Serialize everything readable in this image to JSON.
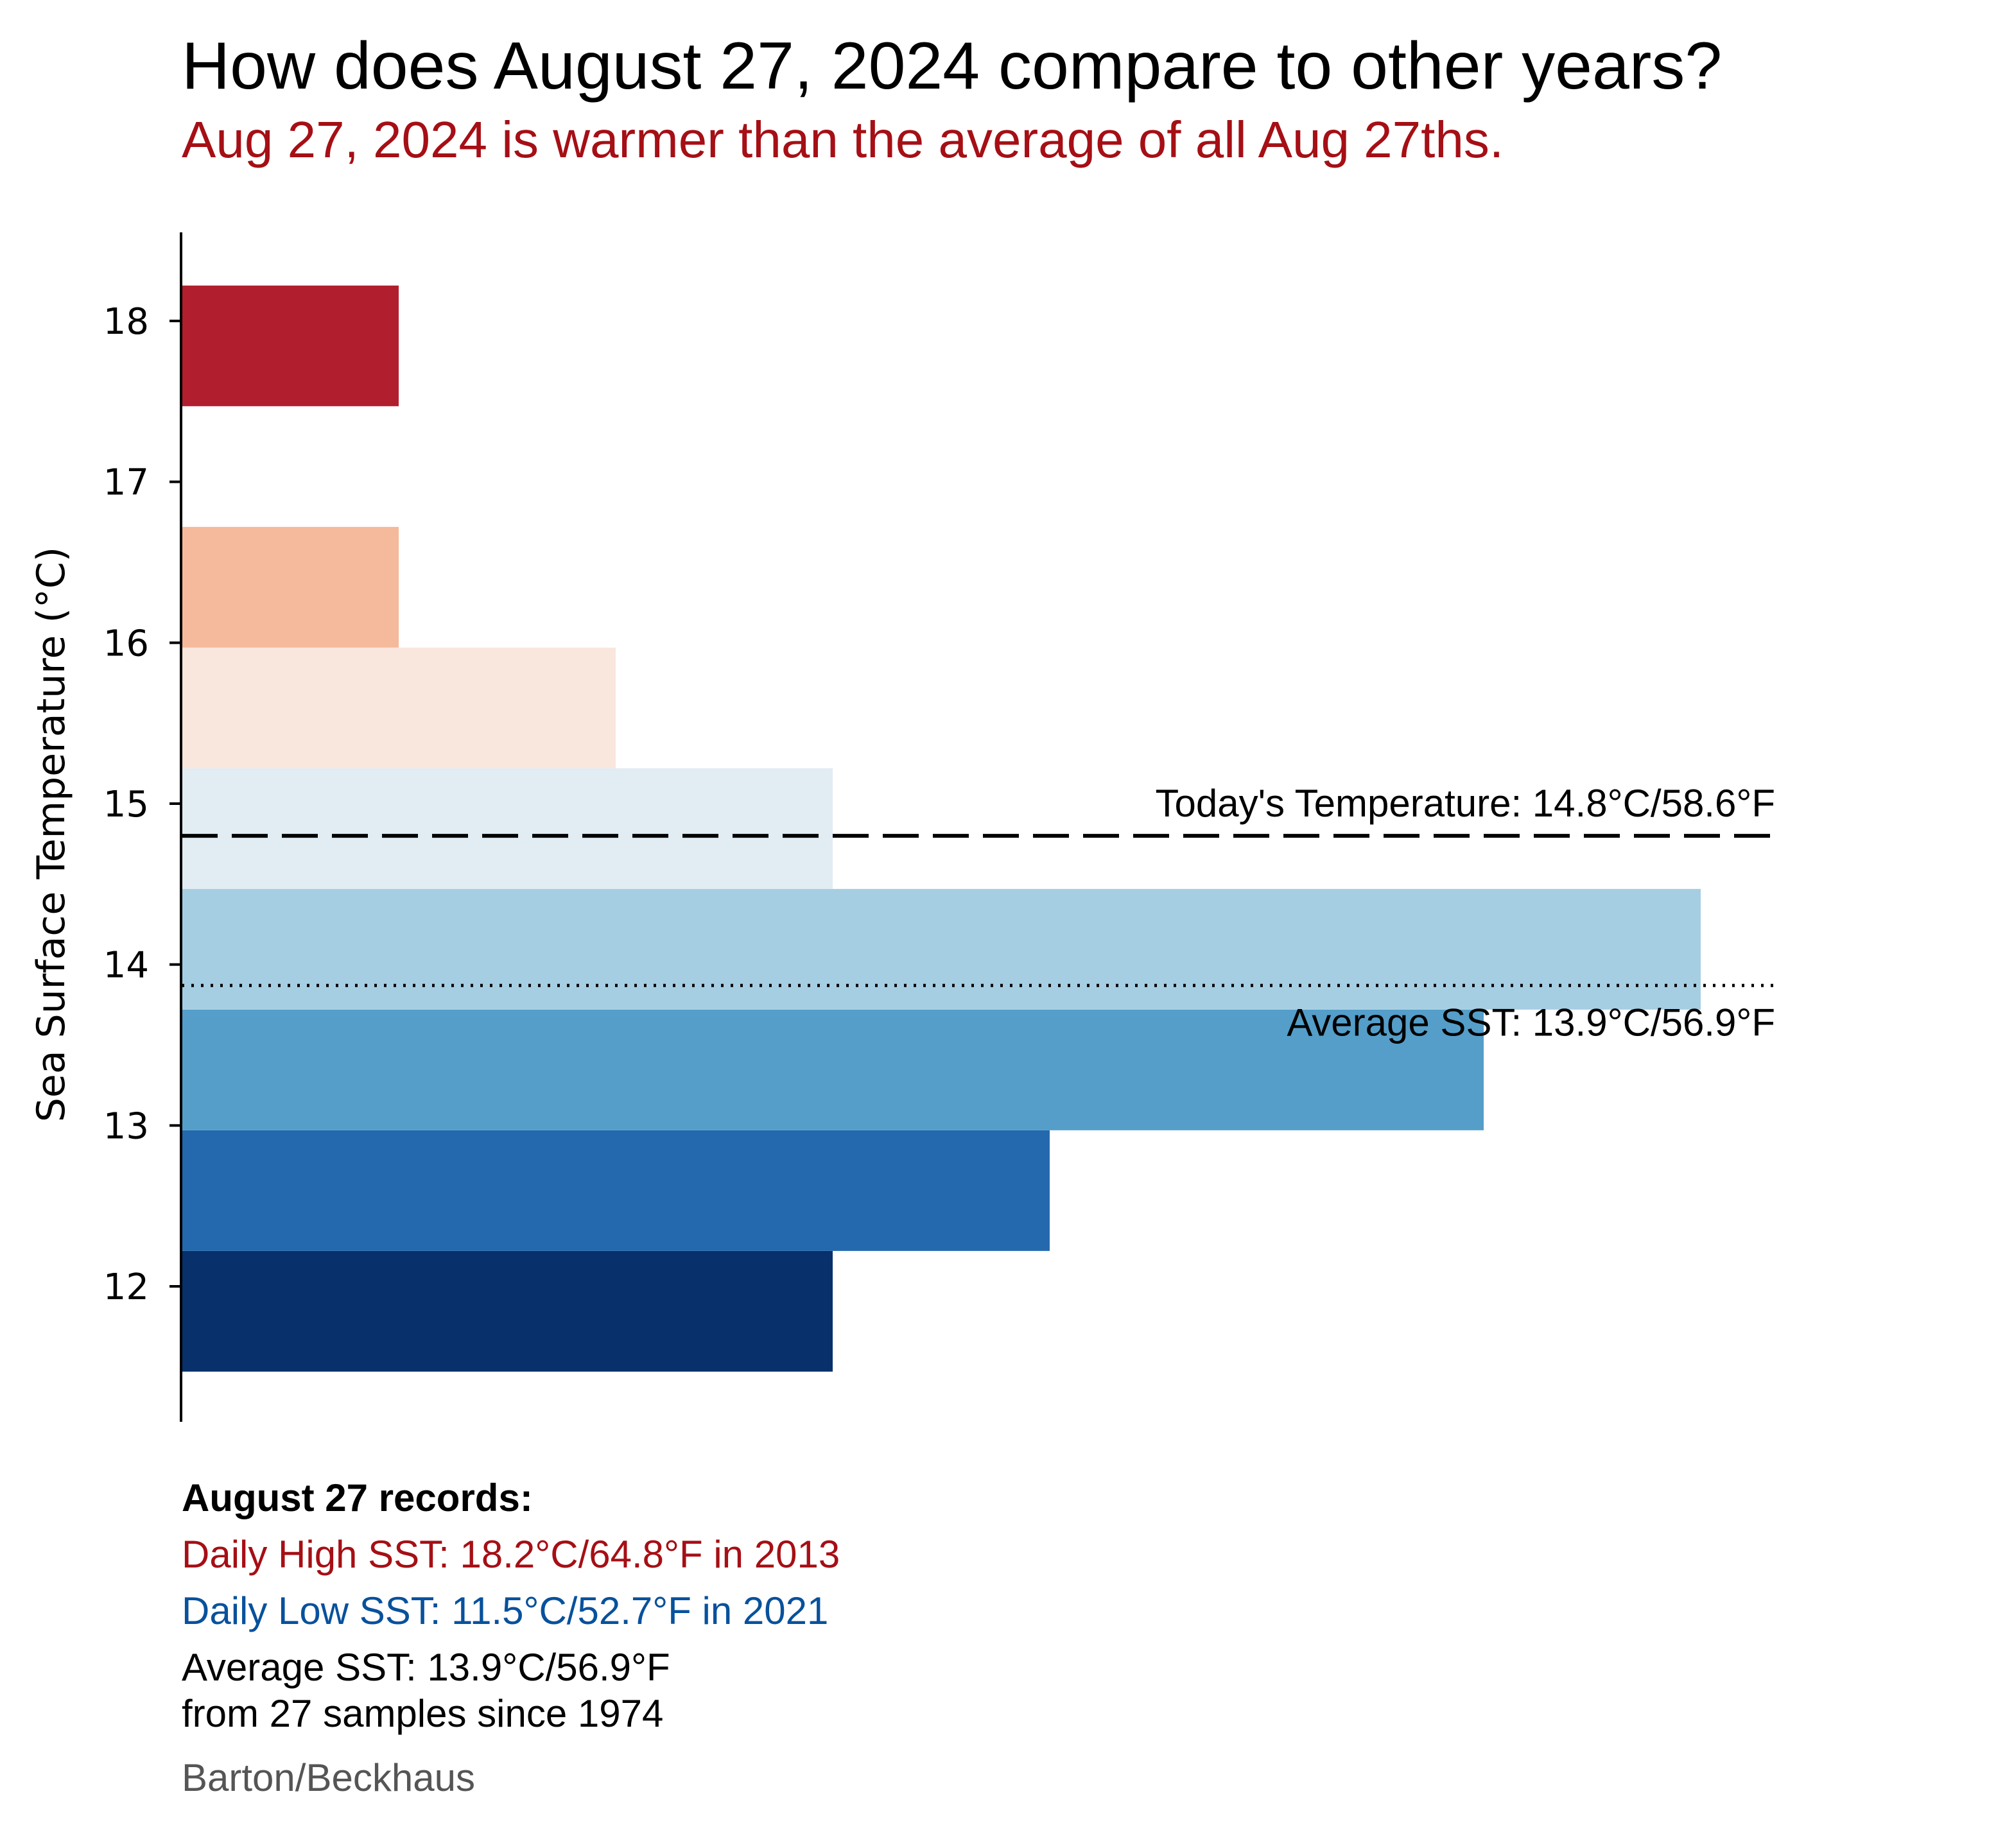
{
  "chart_data": {
    "type": "bar",
    "orientation": "horizontal",
    "title": "How does August 27, 2024 compare to other years?",
    "subtitle": "Aug 27, 2024 is warmer than the average of all Aug 27ths.",
    "ylabel": "Sea Surface Temperature (°C)",
    "xlabel": "",
    "yticks": [
      12,
      13,
      14,
      15,
      16,
      17,
      18
    ],
    "ylim": [
      11.2,
      18.55
    ],
    "xlim": [
      0,
      7.4
    ],
    "grid": false,
    "bins": [
      {
        "low": 11.47,
        "high": 12.22,
        "count": 3,
        "color": "#08306b"
      },
      {
        "low": 12.22,
        "high": 12.97,
        "count": 4,
        "color": "#2469ae"
      },
      {
        "low": 12.97,
        "high": 13.72,
        "count": 6,
        "color": "#549ec9"
      },
      {
        "low": 13.72,
        "high": 14.47,
        "count": 7,
        "color": "#a6cee3"
      },
      {
        "low": 14.47,
        "high": 15.22,
        "count": 3,
        "color": "#e1ecf3"
      },
      {
        "low": 15.22,
        "high": 15.97,
        "count": 2,
        "color": "#f9e6dc"
      },
      {
        "low": 15.97,
        "high": 16.72,
        "count": 1,
        "color": "#f5b99b"
      },
      {
        "low": 16.72,
        "high": 17.47,
        "count": 0,
        "color": "#ffffff"
      },
      {
        "low": 17.47,
        "high": 18.22,
        "count": 1,
        "color": "#b11f2e"
      }
    ],
    "today_line": {
      "value": 14.8,
      "label": "Today's Temperature: 14.8°C/58.6°F",
      "style": "dashed"
    },
    "average_line": {
      "value": 13.87,
      "label": "Average SST: 13.9°C/56.9°F",
      "style": "dotted"
    }
  },
  "notes": {
    "heading": "August 27 records:",
    "high": "Daily High SST: 18.2°C/64.8°F in 2013",
    "low": "Daily Low SST: 11.5°C/52.7°F in 2021",
    "average_line1": "Average SST: 13.9°C/56.9°F",
    "average_line2": "from 27 samples since 1974",
    "credit": "Barton/Beckhaus"
  },
  "colors": {
    "subtitle": "#a50f15",
    "high": "#a50f15",
    "low": "#08519c",
    "credit": "#555555"
  }
}
